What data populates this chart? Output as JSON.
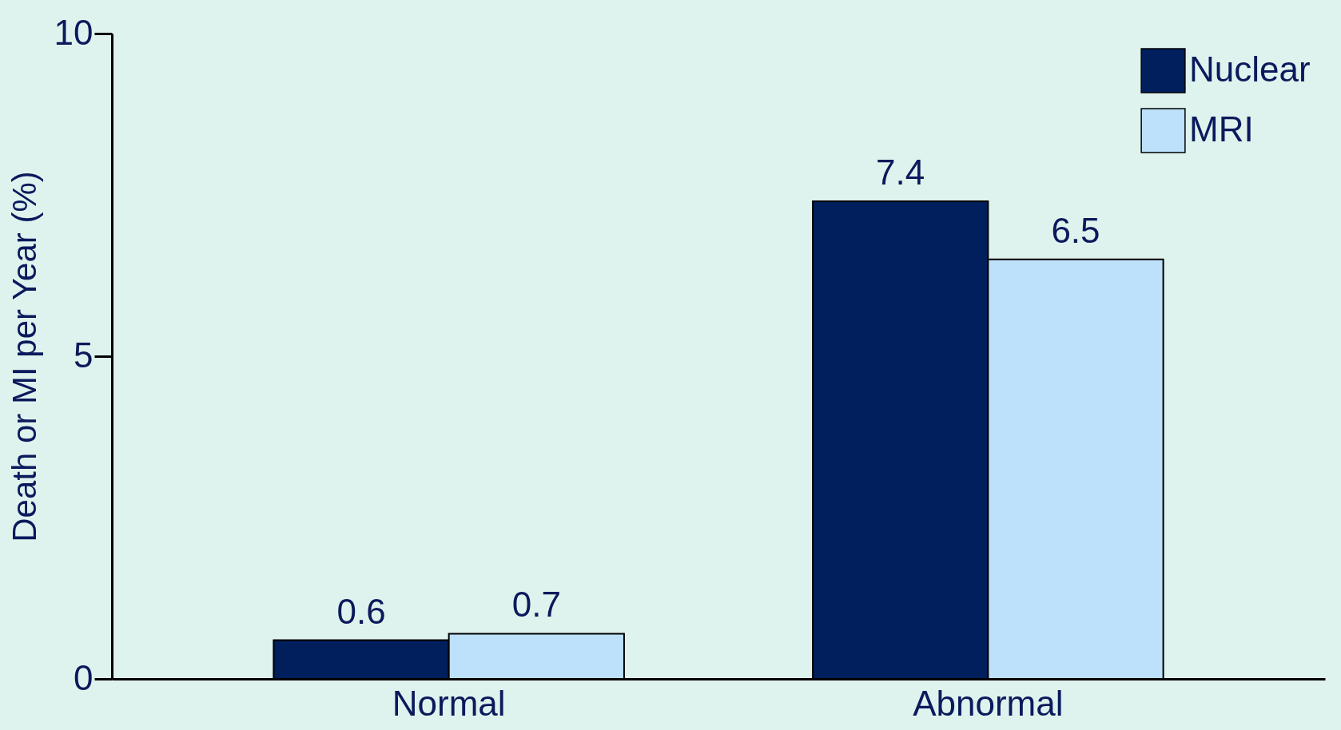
{
  "chart_data": {
    "type": "bar",
    "ylabel": "Death or MI per Year (%)",
    "categories": [
      "Normal",
      "Abnormal"
    ],
    "series": [
      {
        "name": "Nuclear",
        "color": "#001f5c",
        "values": [
          0.6,
          7.4
        ]
      },
      {
        "name": "MRI",
        "color": "#bde0fb",
        "values": [
          0.7,
          6.5
        ]
      }
    ],
    "ylim": [
      0,
      10
    ],
    "yticks": [
      0,
      5,
      10
    ],
    "grid": false,
    "legend": "top right",
    "data_labels": true
  }
}
